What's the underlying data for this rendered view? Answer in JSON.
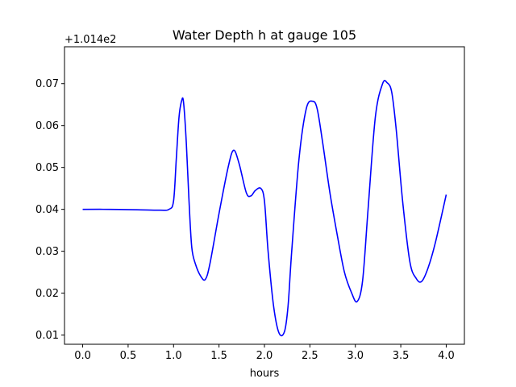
{
  "chart_data": {
    "type": "line",
    "title": "Water Depth h at gauge 105",
    "xlabel": "hours",
    "ylabel": "",
    "y_offset_label": "+1.014e2",
    "xlim": [
      -0.2,
      4.2
    ],
    "ylim": [
      0.0078,
      0.0788
    ],
    "x_ticks": [
      0.0,
      0.5,
      1.0,
      1.5,
      2.0,
      2.5,
      3.0,
      3.5,
      4.0
    ],
    "x_tick_labels": [
      "0.0",
      "0.5",
      "1.0",
      "1.5",
      "2.0",
      "2.5",
      "3.0",
      "3.5",
      "4.0"
    ],
    "y_ticks": [
      0.01,
      0.02,
      0.03,
      0.04,
      0.05,
      0.06,
      0.07
    ],
    "y_tick_labels": [
      "0.01",
      "0.02",
      "0.03",
      "0.04",
      "0.05",
      "0.06",
      "0.07"
    ],
    "grid": false,
    "series": [
      {
        "color": "#0000ff",
        "x": [
          0.0,
          0.3,
          0.6,
          0.85,
          0.95,
          1.0,
          1.03,
          1.06,
          1.09,
          1.11,
          1.14,
          1.17,
          1.2,
          1.24,
          1.3,
          1.35,
          1.4,
          1.5,
          1.6,
          1.66,
          1.72,
          1.8,
          1.85,
          1.9,
          1.96,
          2.0,
          2.04,
          2.1,
          2.16,
          2.22,
          2.26,
          2.3,
          2.38,
          2.46,
          2.53,
          2.58,
          2.64,
          2.72,
          2.8,
          2.88,
          2.96,
          3.02,
          3.08,
          3.14,
          3.22,
          3.3,
          3.35,
          3.4,
          3.45,
          3.52,
          3.6,
          3.67,
          3.73,
          3.8,
          3.88,
          4.0
        ],
        "y": [
          0.04,
          0.04,
          0.0399,
          0.0398,
          0.04,
          0.042,
          0.052,
          0.062,
          0.066,
          0.0655,
          0.056,
          0.042,
          0.031,
          0.027,
          0.024,
          0.0233,
          0.027,
          0.039,
          0.05,
          0.0541,
          0.051,
          0.044,
          0.0432,
          0.0445,
          0.045,
          0.042,
          0.03,
          0.017,
          0.0105,
          0.0108,
          0.017,
          0.03,
          0.052,
          0.064,
          0.0658,
          0.064,
          0.056,
          0.044,
          0.034,
          0.025,
          0.02,
          0.018,
          0.023,
          0.04,
          0.062,
          0.07,
          0.0702,
          0.068,
          0.059,
          0.042,
          0.0275,
          0.0235,
          0.0228,
          0.026,
          0.032,
          0.0435
        ]
      }
    ]
  }
}
